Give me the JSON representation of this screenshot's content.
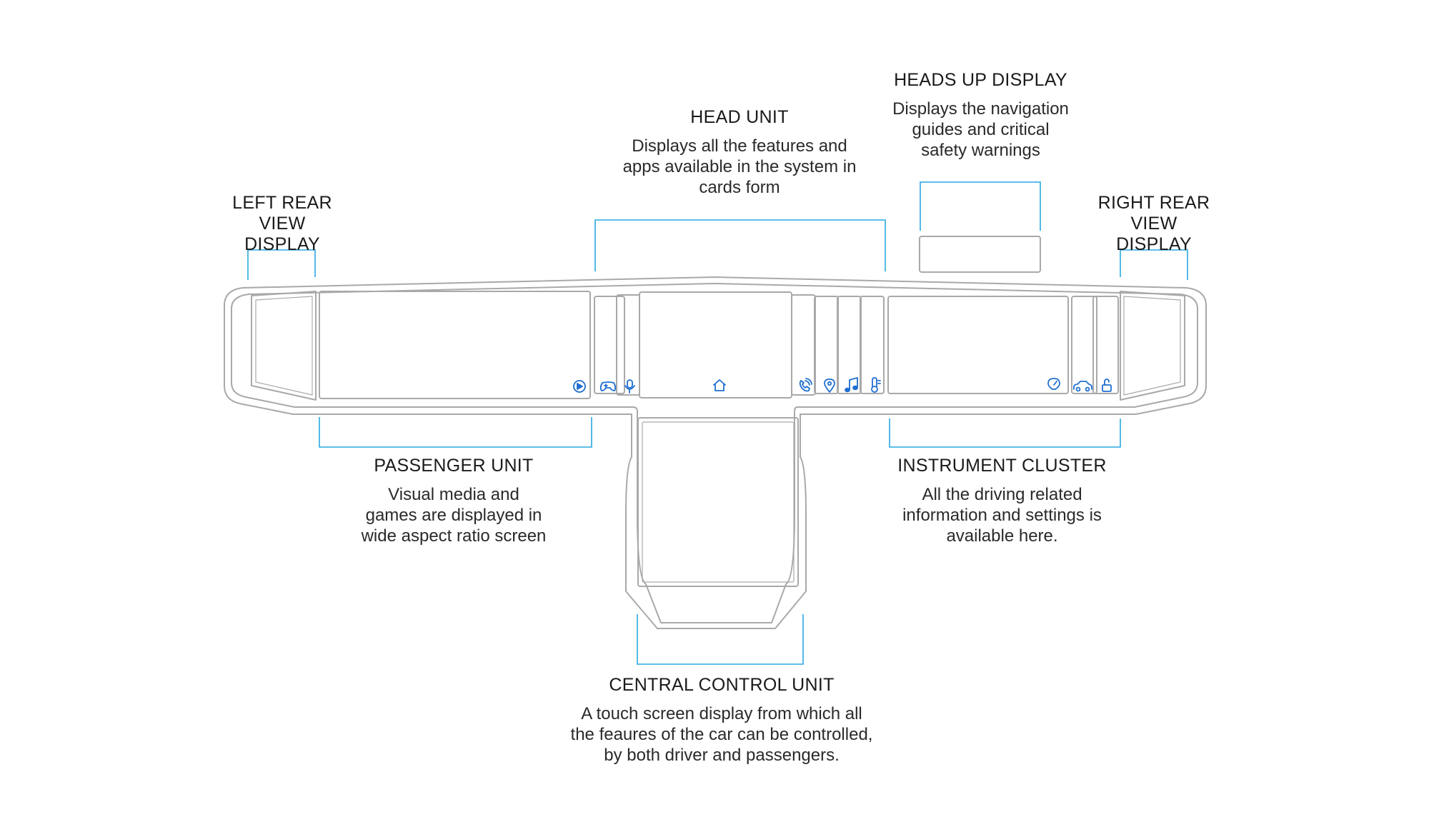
{
  "colors": {
    "accent": "#29a8e0",
    "icon": "#1f6fd1",
    "outline": "#a9a9a9",
    "text": "#1a1a1a"
  },
  "labels": {
    "left_rear": {
      "title": "LEFT REAR VIEW DISPLAY"
    },
    "head_unit": {
      "title": "HEAD UNIT",
      "desc": "Displays all the features and apps available in the system in cards form"
    },
    "heads_up": {
      "title": "HEADS UP DISPLAY",
      "desc": "Displays the navigation guides and critical safety warnings"
    },
    "right_rear": {
      "title": "RIGHT REAR VIEW DISPLAY"
    },
    "passenger": {
      "title": "PASSENGER UNIT",
      "desc": "Visual media and games are displayed in wide aspect ratio screen"
    },
    "instrument": {
      "title": "INSTRUMENT CLUSTER",
      "desc": "All the driving related information and settings is available here."
    },
    "central": {
      "title": "CENTRAL CONTROL UNIT",
      "desc": "A touch screen display from which all the feaures of the car can be controlled, by both driver and passengers."
    }
  },
  "icons": [
    "play-icon",
    "gamepad-icon",
    "microphone-icon",
    "home-icon",
    "phone-icon",
    "location-pin-icon",
    "music-note-icon",
    "thermometer-icon",
    "speedometer-icon",
    "car-icon",
    "lock-icon"
  ]
}
